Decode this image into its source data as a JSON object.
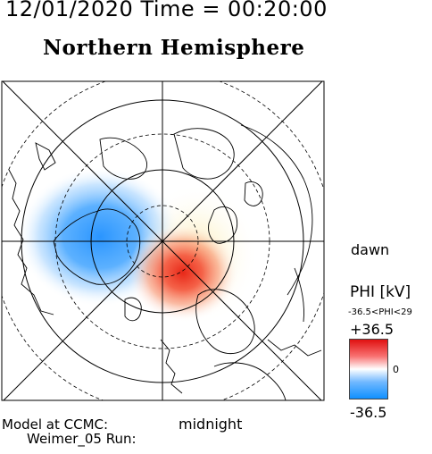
{
  "header": {
    "datetime": "12/01/2020 Time = 00:20:00",
    "hemisphere": "Northern Hemisphere"
  },
  "map": {
    "projection": "polar-stereographic",
    "pole": "north",
    "local_time_labels": {
      "dawn": "dawn",
      "midnight": "midnight"
    },
    "potential_cells": [
      {
        "name": "dusk cell (negative)",
        "color": "#1090ff",
        "sign": "negative"
      },
      {
        "name": "dawn cell (positive)",
        "color": "#e01010",
        "sign": "positive"
      }
    ]
  },
  "colorbar": {
    "title": "PHI [kV]",
    "range_label": "-36.5<PHI<29",
    "max_label": "+36.5",
    "zero_label": "0",
    "min_label": "-36.5",
    "max_value": 36.5,
    "min_value": -36.5,
    "max_color": "#e01010",
    "min_color": "#1090ff"
  },
  "footer": {
    "model_line1": "Model at CCMC:",
    "model_line2": "Weimer_05  Run:"
  }
}
